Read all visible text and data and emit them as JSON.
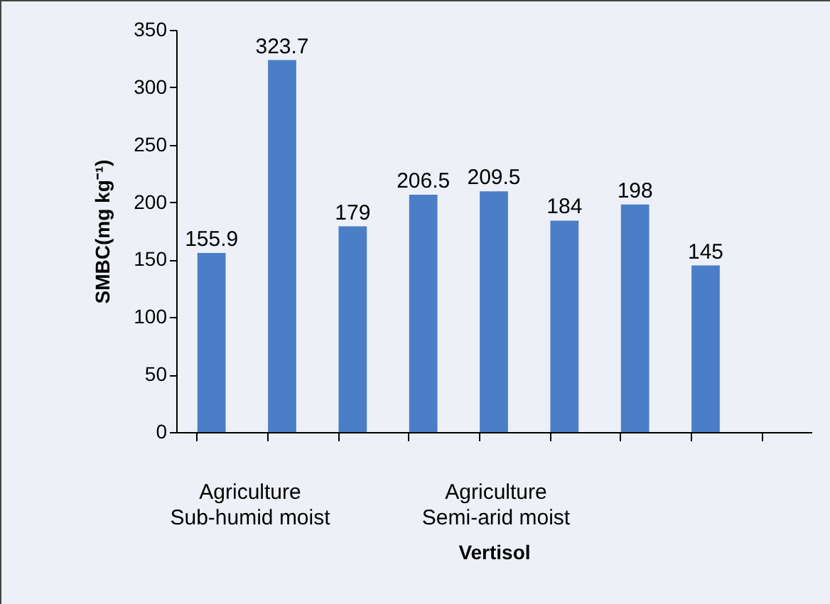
{
  "chart_data": {
    "type": "bar",
    "categories": [
      null,
      null,
      null,
      null,
      null,
      null,
      null,
      null,
      null
    ],
    "values": [
      155.9,
      323.7,
      179,
      206.5,
      209.5,
      184,
      198,
      145,
      null
    ],
    "color": "#4a7ec6",
    "ylim": [
      0,
      350
    ],
    "yticks": [
      0,
      50,
      100,
      150,
      200,
      250,
      300,
      350
    ],
    "ylabel": "SMBC(mg kg⁻¹)",
    "xlabel": "Vertisol",
    "data_labels": true,
    "grid": false,
    "annotations": [
      "Agriculture\nSub-humid moist",
      "Agriculture\nSemi-arid moist"
    ]
  }
}
